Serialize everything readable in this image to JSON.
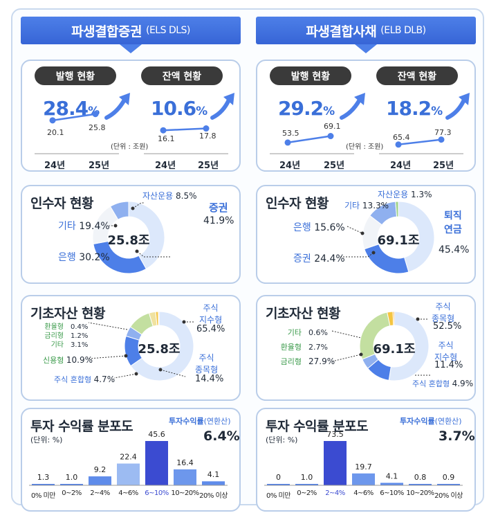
{
  "left": {
    "header": {
      "title": "파생결합증권",
      "sub": "(ELS DLS)"
    },
    "issuance": {
      "label": "발행 현황",
      "growth": "28.4",
      "unit_sign": "%",
      "v24": "20.1",
      "v25": "25.8"
    },
    "balance": {
      "label": "잔액 현황",
      "growth": "10.6",
      "unit_sign": "%",
      "v24": "16.1",
      "v25": "17.8"
    },
    "unit_note": "(단위 : 조원)",
    "years": [
      "24년",
      "25년"
    ],
    "investors": {
      "title": "인수자 현황",
      "center": "25.8조",
      "slices": [
        {
          "name": "증권",
          "pct": "41.9%",
          "value": 41.9,
          "color": "#dce8fb"
        },
        {
          "name": "은행",
          "pct": "30.2%",
          "value": 30.2,
          "color": "#4d7fe8"
        },
        {
          "name": "기타",
          "pct": "19.4%",
          "value": 19.4,
          "color": "#f1f4f8"
        },
        {
          "name": "자산운용",
          "pct": "8.5%",
          "value": 8.5,
          "color": "#8fb0ef"
        }
      ]
    },
    "underlying": {
      "title": "기초자산 현황",
      "center": "25.8조",
      "slices": [
        {
          "name": "주식 지수형",
          "line1": "주식",
          "line2": "지수형",
          "pct": "65.4%",
          "value": 65.4,
          "color": "#dce8fb"
        },
        {
          "name": "주식 종목형",
          "line1": "주식",
          "line2": "종목형",
          "pct": "14.4%",
          "value": 14.4,
          "color": "#4d7fe8"
        },
        {
          "name": "주식 혼합형",
          "pct": "4.7%",
          "value": 4.7,
          "color": "#8fb0ef"
        },
        {
          "name": "신용형",
          "pct": "10.9%",
          "value": 10.9,
          "color": "#c3dfa0"
        },
        {
          "name": "기타",
          "pct": "3.1%",
          "value": 3.1,
          "color": "#f0e2a0"
        },
        {
          "name": "금리형",
          "pct": "1.2%",
          "value": 1.2,
          "color": "#f4c542"
        },
        {
          "name": "환율형",
          "pct": "0.4%",
          "value": 0.4,
          "color": "#f6a623"
        }
      ]
    },
    "returns": {
      "title": "투자 수익률 분포도",
      "unit": "(단위: %)",
      "annual_label": "투자수익률",
      "annual_suffix": "(연환산)",
      "annual_value": "6.4%",
      "categories": [
        "0% 미만",
        "0~2%",
        "2~4%",
        "4~6%",
        "6~10%",
        "10~20%",
        "20% 이상"
      ],
      "values": [
        1.3,
        1.0,
        9.2,
        22.4,
        45.6,
        16.4,
        4.1
      ],
      "labels": [
        "1.3",
        "1.0",
        "9.2",
        "22.4",
        "45.6",
        "16.4",
        "4.1"
      ],
      "highlight": 4
    }
  },
  "right": {
    "header": {
      "title": "파생결합사채",
      "sub": "(ELB DLB)"
    },
    "issuance": {
      "label": "발행 현황",
      "growth": "29.2",
      "unit_sign": "%",
      "v24": "53.5",
      "v25": "69.1"
    },
    "balance": {
      "label": "잔액 현황",
      "growth": "18.2",
      "unit_sign": "%",
      "v24": "65.4",
      "v25": "77.3"
    },
    "unit_note": "(단위 : 조원)",
    "years": [
      "24년",
      "25년"
    ],
    "investors": {
      "title": "인수자 현황",
      "center": "69.1조",
      "slices": [
        {
          "name": "퇴직 연금",
          "line1": "퇴직",
          "line2": "연금",
          "pct": "45.4%",
          "value": 45.4,
          "color": "#dce8fb"
        },
        {
          "name": "증권",
          "pct": "24.4%",
          "value": 24.4,
          "color": "#4d7fe8"
        },
        {
          "name": "은행",
          "pct": "15.6%",
          "value": 15.6,
          "color": "#f1f4f8"
        },
        {
          "name": "기타",
          "pct": "13.3%",
          "value": 13.3,
          "color": "#8fb0ef"
        },
        {
          "name": "자산운용",
          "pct": "1.3%",
          "value": 1.3,
          "color": "#9fd28a"
        }
      ]
    },
    "underlying": {
      "title": "기초자산 현황",
      "center": "69.1조",
      "slices": [
        {
          "name": "주식 종목형",
          "line1": "주식",
          "line2": "종목형",
          "pct": "52.5%",
          "value": 52.5,
          "color": "#dce8fb"
        },
        {
          "name": "주식 지수형",
          "line1": "주식",
          "line2": "지수형",
          "pct": "11.4%",
          "value": 11.4,
          "color": "#4d7fe8"
        },
        {
          "name": "주식 혼합형",
          "pct": "4.9%",
          "value": 4.9,
          "color": "#8fb0ef"
        },
        {
          "name": "금리형",
          "pct": "27.9%",
          "value": 27.9,
          "color": "#c3dfa0"
        },
        {
          "name": "환율형",
          "pct": "2.7%",
          "value": 2.7,
          "color": "#f4c542"
        },
        {
          "name": "기타",
          "pct": "0.6%",
          "value": 0.6,
          "color": "#f6a623"
        }
      ]
    },
    "returns": {
      "title": "투자 수익률 분포도",
      "unit": "(단위: %)",
      "annual_label": "투자수익률",
      "annual_suffix": "(연환산)",
      "annual_value": "3.7%",
      "categories": [
        "0% 미만",
        "0~2%",
        "2~4%",
        "4~6%",
        "6~10%",
        "10~20%",
        "20% 이상"
      ],
      "values": [
        0,
        1.0,
        73.5,
        19.7,
        4.1,
        0.8,
        0.9
      ],
      "labels": [
        "0",
        "1.0",
        "73.5",
        "19.7",
        "4.1",
        "0.8",
        "0.9"
      ],
      "highlight": 2
    }
  },
  "chart_data": [
    {
      "type": "line",
      "title": "파생결합증권 발행 현황",
      "categories": [
        "24년",
        "25년"
      ],
      "values": [
        20.1,
        25.8
      ],
      "ylabel": "(단위 : 조원)"
    },
    {
      "type": "line",
      "title": "파생결합증권 잔액 현황",
      "categories": [
        "24년",
        "25년"
      ],
      "values": [
        16.1,
        17.8
      ]
    },
    {
      "type": "pie",
      "title": "파생결합증권 인수자 현황",
      "categories": [
        "증권",
        "은행",
        "기타",
        "자산운용"
      ],
      "values": [
        41.9,
        30.2,
        19.4,
        8.5
      ]
    },
    {
      "type": "pie",
      "title": "파생결합증권 기초자산 현황",
      "categories": [
        "주식 지수형",
        "주식 종목형",
        "주식 혼합형",
        "신용형",
        "기타",
        "금리형",
        "환율형"
      ],
      "values": [
        65.4,
        14.4,
        4.7,
        10.9,
        3.1,
        1.2,
        0.4
      ]
    },
    {
      "type": "bar",
      "title": "파생결합증권 투자 수익률 분포도",
      "categories": [
        "0% 미만",
        "0~2%",
        "2~4%",
        "4~6%",
        "6~10%",
        "10~20%",
        "20% 이상"
      ],
      "values": [
        1.3,
        1.0,
        9.2,
        22.4,
        45.6,
        16.4,
        4.1
      ],
      "ylabel": "(단위: %)"
    },
    {
      "type": "line",
      "title": "파생결합사채 발행 현황",
      "categories": [
        "24년",
        "25년"
      ],
      "values": [
        53.5,
        69.1
      ],
      "ylabel": "(단위 : 조원)"
    },
    {
      "type": "line",
      "title": "파생결합사채 잔액 현황",
      "categories": [
        "24년",
        "25년"
      ],
      "values": [
        65.4,
        77.3
      ]
    },
    {
      "type": "pie",
      "title": "파생결합사채 인수자 현황",
      "categories": [
        "퇴직 연금",
        "증권",
        "은행",
        "기타",
        "자산운용"
      ],
      "values": [
        45.4,
        24.4,
        15.6,
        13.3,
        1.3
      ]
    },
    {
      "type": "pie",
      "title": "파생결합사채 기초자산 현황",
      "categories": [
        "주식 종목형",
        "주식 지수형",
        "주식 혼합형",
        "금리형",
        "환율형",
        "기타"
      ],
      "values": [
        52.5,
        11.4,
        4.9,
        27.9,
        2.7,
        0.6
      ]
    },
    {
      "type": "bar",
      "title": "파생결합사채 투자 수익률 분포도",
      "categories": [
        "0% 미만",
        "0~2%",
        "2~4%",
        "4~6%",
        "6~10%",
        "10~20%",
        "20% 이상"
      ],
      "values": [
        0,
        1.0,
        73.5,
        19.7,
        4.1,
        0.8,
        0.9
      ],
      "ylabel": "(단위: %)"
    }
  ]
}
